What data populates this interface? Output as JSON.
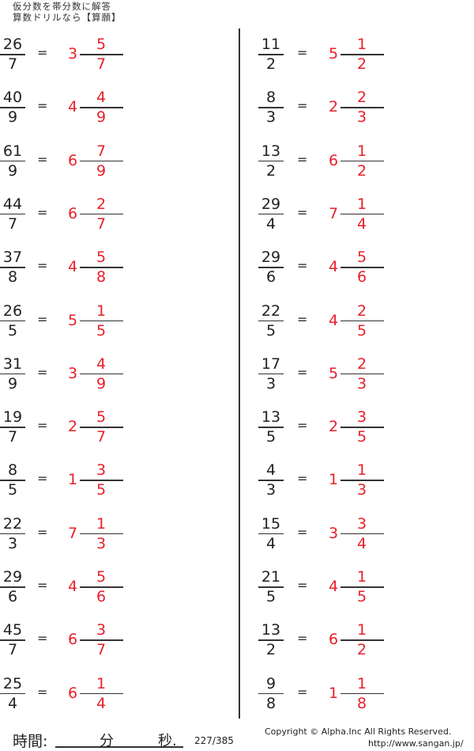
{
  "header": {
    "line1": "仮分数を帯分数に解答",
    "line2": "算数ドリルなら【算願】"
  },
  "equals": "=",
  "problems": {
    "left": [
      {
        "n": "26",
        "d": "7",
        "w": "3",
        "an": "5",
        "ad": "7"
      },
      {
        "n": "40",
        "d": "9",
        "w": "4",
        "an": "4",
        "ad": "9"
      },
      {
        "n": "61",
        "d": "9",
        "w": "6",
        "an": "7",
        "ad": "9"
      },
      {
        "n": "44",
        "d": "7",
        "w": "6",
        "an": "2",
        "ad": "7"
      },
      {
        "n": "37",
        "d": "8",
        "w": "4",
        "an": "5",
        "ad": "8"
      },
      {
        "n": "26",
        "d": "5",
        "w": "5",
        "an": "1",
        "ad": "5"
      },
      {
        "n": "31",
        "d": "9",
        "w": "3",
        "an": "4",
        "ad": "9"
      },
      {
        "n": "19",
        "d": "7",
        "w": "2",
        "an": "5",
        "ad": "7"
      },
      {
        "n": "8",
        "d": "5",
        "w": "1",
        "an": "3",
        "ad": "5"
      },
      {
        "n": "22",
        "d": "3",
        "w": "7",
        "an": "1",
        "ad": "3"
      },
      {
        "n": "29",
        "d": "6",
        "w": "4",
        "an": "5",
        "ad": "6"
      },
      {
        "n": "45",
        "d": "7",
        "w": "6",
        "an": "3",
        "ad": "7"
      },
      {
        "n": "25",
        "d": "4",
        "w": "6",
        "an": "1",
        "ad": "4"
      }
    ],
    "right": [
      {
        "n": "11",
        "d": "2",
        "w": "5",
        "an": "1",
        "ad": "2"
      },
      {
        "n": "8",
        "d": "3",
        "w": "2",
        "an": "2",
        "ad": "3"
      },
      {
        "n": "13",
        "d": "2",
        "w": "6",
        "an": "1",
        "ad": "2"
      },
      {
        "n": "29",
        "d": "4",
        "w": "7",
        "an": "1",
        "ad": "4"
      },
      {
        "n": "29",
        "d": "6",
        "w": "4",
        "an": "5",
        "ad": "6"
      },
      {
        "n": "22",
        "d": "5",
        "w": "4",
        "an": "2",
        "ad": "5"
      },
      {
        "n": "17",
        "d": "3",
        "w": "5",
        "an": "2",
        "ad": "3"
      },
      {
        "n": "13",
        "d": "5",
        "w": "2",
        "an": "3",
        "ad": "5"
      },
      {
        "n": "4",
        "d": "3",
        "w": "1",
        "an": "1",
        "ad": "3"
      },
      {
        "n": "15",
        "d": "4",
        "w": "3",
        "an": "3",
        "ad": "4"
      },
      {
        "n": "21",
        "d": "5",
        "w": "4",
        "an": "1",
        "ad": "5"
      },
      {
        "n": "13",
        "d": "2",
        "w": "6",
        "an": "1",
        "ad": "2"
      },
      {
        "n": "9",
        "d": "8",
        "w": "1",
        "an": "1",
        "ad": "8"
      }
    ]
  },
  "colors": {
    "answer": "#e8202a",
    "text": "#222222"
  },
  "footer": {
    "time_label": "時間:",
    "minutes": "分",
    "seconds": "秒.",
    "page": "227/385",
    "copyright": "Copyright ©  Alpha.Inc All Rights Reserved.",
    "url": "http://www.sangan.jp/"
  }
}
